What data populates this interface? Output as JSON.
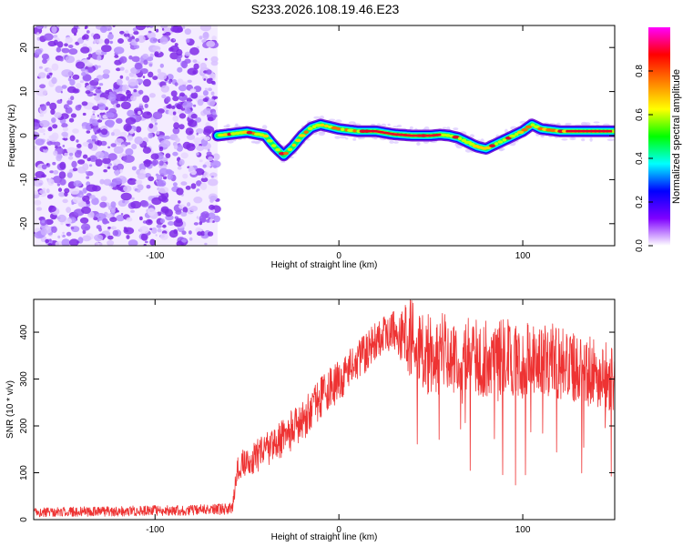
{
  "title": "S233.2026.108.19.46.E23",
  "chart_data": [
    {
      "type": "heatmap",
      "name": "spectrogram",
      "xlabel": "Height of straight line (km)",
      "ylabel": "Frequency (Hz)",
      "xlim": [
        -166,
        150
      ],
      "ylim": [
        -25,
        25
      ],
      "xticks": [
        -100,
        0,
        100
      ],
      "xtick_labels": [
        "-100",
        "0",
        "100"
      ],
      "yticks": [
        -20,
        -10,
        0,
        10,
        20
      ],
      "ytick_labels": [
        "-20",
        "-10",
        "0",
        "10",
        "20"
      ],
      "noise_region_x": [
        -166,
        -66
      ],
      "signal_region_x": [
        -66,
        150
      ],
      "ridge_frequency": {
        "x": [
          -66,
          -50,
          -40,
          -35,
          -30,
          -25,
          -20,
          -15,
          -10,
          -5,
          0,
          10,
          20,
          30,
          40,
          50,
          55,
          60,
          65,
          70,
          75,
          80,
          85,
          90,
          95,
          100,
          105,
          110,
          120,
          130,
          140,
          150
        ],
        "y": [
          0,
          0.8,
          0,
          -2.5,
          -4.5,
          -2.5,
          0,
          1.8,
          2.5,
          2,
          1.5,
          1,
          1,
          0.3,
          0,
          0,
          0.2,
          0,
          -0.5,
          -1.5,
          -2.5,
          -3,
          -2,
          -1,
          0,
          1,
          2.5,
          1.5,
          1,
          1,
          1,
          1
        ]
      },
      "colorbar": {
        "label": "Normalized spectral amplitude",
        "range": [
          0,
          1
        ],
        "ticks": [
          0.0,
          0.2,
          0.4,
          0.6,
          0.8
        ],
        "tick_labels": [
          "0.0",
          "0.2",
          "0.4",
          "0.6",
          "0.8"
        ],
        "colors": [
          "#ffffff",
          "#7f00ff",
          "#0000ff",
          "#00ffff",
          "#00ff00",
          "#ffff00",
          "#ff7f00",
          "#ff0000",
          "#ff00ff"
        ]
      }
    },
    {
      "type": "line",
      "name": "snr",
      "xlabel": "Height of straight line (km)",
      "ylabel": "SNR (10 * v/v)",
      "xlim": [
        -166,
        150
      ],
      "ylim": [
        0,
        470
      ],
      "xticks": [
        -100,
        0,
        100
      ],
      "xtick_labels": [
        "-100",
        "0",
        "100"
      ],
      "yticks": [
        0,
        100,
        200,
        300,
        400
      ],
      "ytick_labels": [
        "0",
        "100",
        "200",
        "300",
        "400"
      ],
      "color": "#ee3333",
      "trend": {
        "x": [
          -166,
          -100,
          -70,
          -58,
          -55,
          -50,
          -40,
          -30,
          -20,
          -10,
          0,
          10,
          20,
          30,
          40,
          50,
          60,
          70,
          80,
          90,
          100,
          110,
          120,
          130,
          140,
          150
        ],
        "y": [
          17,
          20,
          22,
          25,
          115,
          125,
          150,
          180,
          215,
          265,
          300,
          340,
          385,
          410,
          395,
          360,
          365,
          360,
          355,
          360,
          345,
          350,
          345,
          335,
          320,
          305
        ]
      },
      "noise_amplitude": {
        "x": [
          -166,
          -58,
          -55,
          -30,
          0,
          30,
          40,
          80,
          150
        ],
        "y": [
          10,
          12,
          30,
          45,
          45,
          40,
          90,
          85,
          75
        ]
      }
    }
  ]
}
